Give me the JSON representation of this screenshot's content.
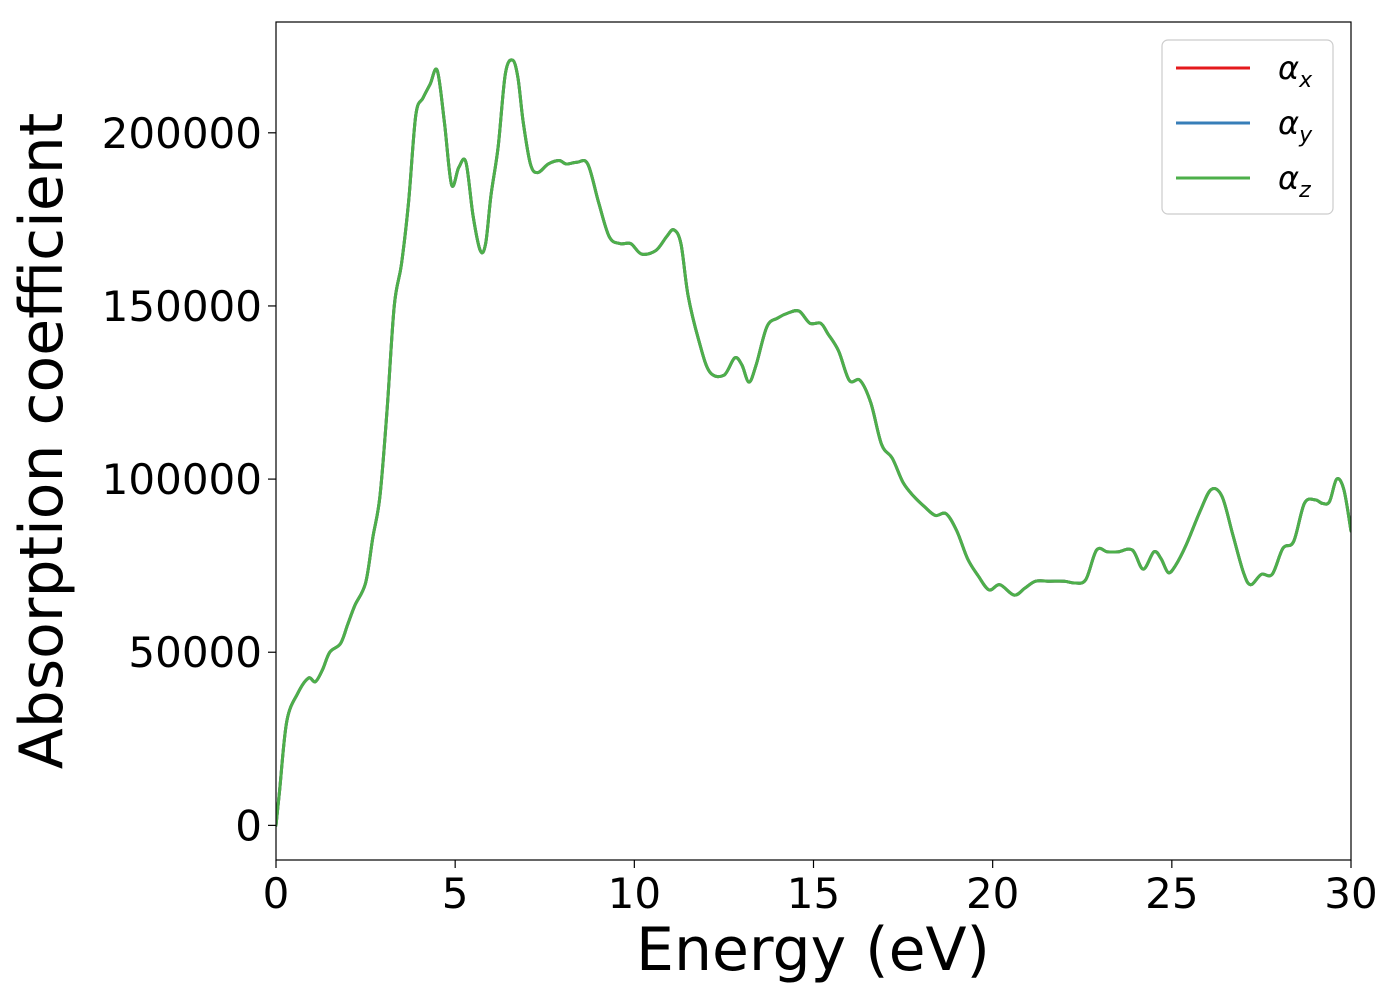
{
  "chart_data": {
    "type": "line",
    "title": "",
    "xlabel": "Energy (eV)",
    "ylabel": "Absorption coefficient",
    "xlim": [
      0,
      30
    ],
    "ylim": [
      -10000,
      232000
    ],
    "xticks": [
      0,
      5,
      10,
      15,
      20,
      25,
      30
    ],
    "yticks": [
      0,
      50000,
      100000,
      150000,
      200000
    ],
    "xtick_labels": [
      "0",
      "5",
      "10",
      "15",
      "20",
      "25",
      "30"
    ],
    "ytick_labels": [
      "0",
      "50000",
      "100000",
      "150000",
      "200000"
    ],
    "grid": false,
    "legend_position": "top-right",
    "series": [
      {
        "name": "α",
        "subscript": "x",
        "color": "#e41a1c",
        "ref": "shared"
      },
      {
        "name": "α",
        "subscript": "y",
        "color": "#377eb8",
        "ref": "shared"
      },
      {
        "name": "α",
        "subscript": "z",
        "color": "#4daf4a",
        "ref": "shared"
      }
    ],
    "x": [
      0,
      0.1,
      0.3,
      0.6,
      0.9,
      1.1,
      1.3,
      1.5,
      1.8,
      2.0,
      2.2,
      2.5,
      2.7,
      2.9,
      3.1,
      3.3,
      3.5,
      3.7,
      3.9,
      4.1,
      4.3,
      4.5,
      4.7,
      4.9,
      5.1,
      5.3,
      5.5,
      5.7,
      5.85,
      6.0,
      6.2,
      6.4,
      6.6,
      6.75,
      6.9,
      7.1,
      7.3,
      7.6,
      7.9,
      8.1,
      8.4,
      8.7,
      9.0,
      9.3,
      9.6,
      9.9,
      10.2,
      10.6,
      10.9,
      11.1,
      11.3,
      11.5,
      11.8,
      12.1,
      12.5,
      12.8,
      13.0,
      13.2,
      13.4,
      13.7,
      14.0,
      14.3,
      14.6,
      14.9,
      15.2,
      15.4,
      15.7,
      16.0,
      16.3,
      16.6,
      16.9,
      17.2,
      17.5,
      17.8,
      18.1,
      18.4,
      18.7,
      19.0,
      19.3,
      19.6,
      19.9,
      20.2,
      20.6,
      20.9,
      21.2,
      21.6,
      22.0,
      22.3,
      22.6,
      22.9,
      23.2,
      23.5,
      23.9,
      24.2,
      24.5,
      24.7,
      24.9,
      25.1,
      25.4,
      25.8,
      26.1,
      26.4,
      26.7,
      27.0,
      27.2,
      27.5,
      27.8,
      28.1,
      28.4,
      28.7,
      29.0,
      29.2,
      29.4,
      29.6,
      29.8,
      30.0
    ],
    "y": [
      0,
      10000,
      30000,
      38000,
      42500,
      41500,
      45000,
      50000,
      52500,
      58000,
      63500,
      70000,
      83000,
      95000,
      120000,
      150000,
      162000,
      180000,
      205000,
      210000,
      214000,
      218000,
      203000,
      185000,
      190000,
      191500,
      176000,
      166000,
      168000,
      182000,
      196000,
      217000,
      221000,
      216000,
      203000,
      191000,
      188500,
      191000,
      192000,
      191000,
      191500,
      191000,
      180000,
      170000,
      168000,
      168000,
      165000,
      166000,
      170000,
      172000,
      168000,
      153000,
      140000,
      131000,
      130000,
      135000,
      133000,
      128000,
      133000,
      144000,
      146500,
      148000,
      148500,
      145000,
      145000,
      142000,
      137000,
      128500,
      128500,
      122000,
      110000,
      106000,
      99000,
      95000,
      92000,
      89500,
      90000,
      85000,
      77000,
      72000,
      68000,
      69500,
      66500,
      68500,
      70500,
      70500,
      70500,
      70000,
      71000,
      79500,
      79000,
      79000,
      79500,
      74000,
      79000,
      77000,
      73000,
      75000,
      81000,
      91000,
      97000,
      95000,
      84000,
      73000,
      69500,
      72500,
      72500,
      80000,
      82000,
      93000,
      94000,
      93000,
      93500,
      100000,
      97000,
      85000
    ]
  }
}
